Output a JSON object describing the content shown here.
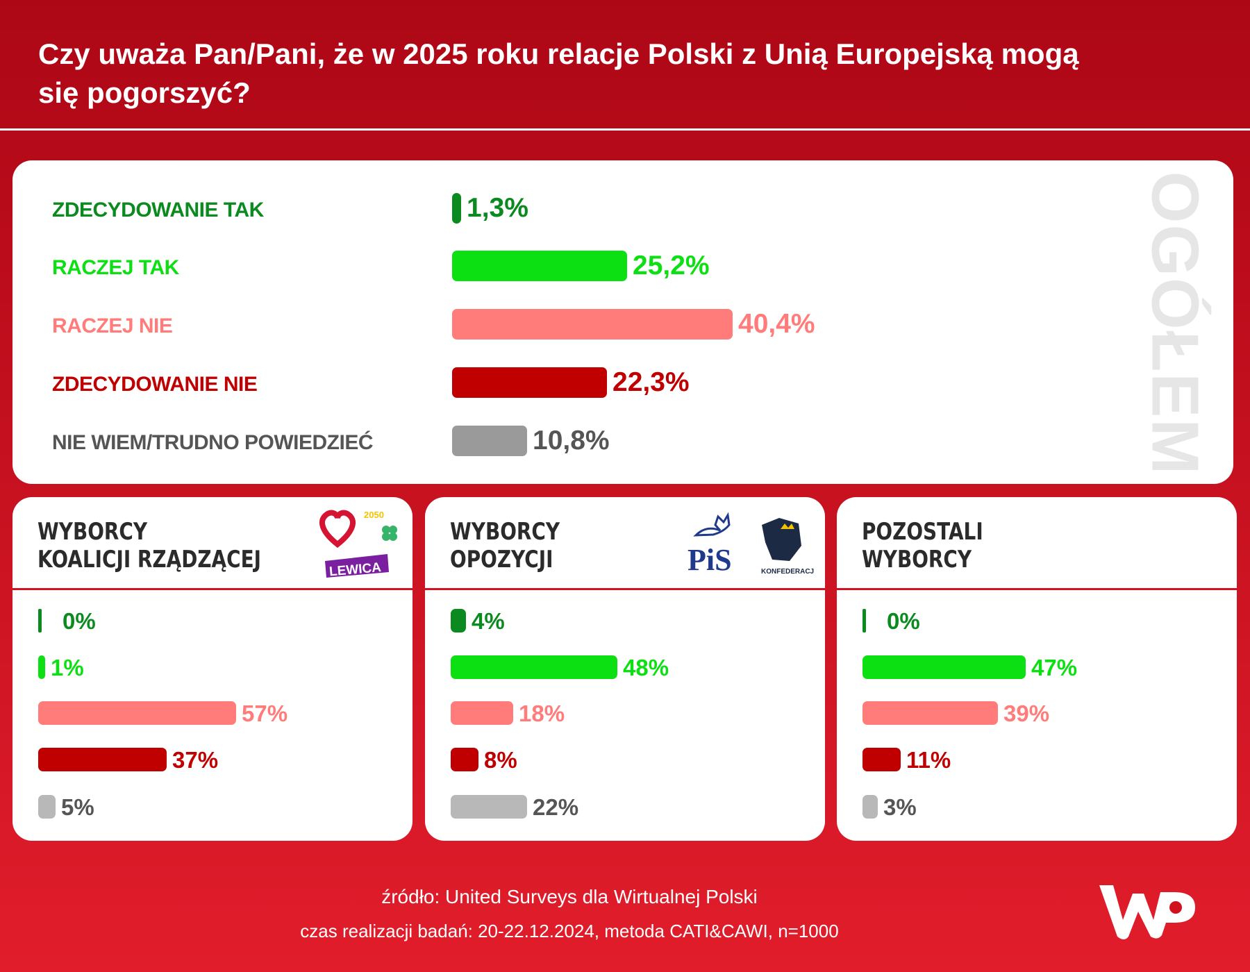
{
  "title": "Czy uważa Pan/Pani, że w 2025 roku relacje Polski z Unią Europejską mogą się pogorszyć?",
  "colors": {
    "zdecydowanie_tak": "#0a8a1f",
    "raczej_tak": "#0ce013",
    "raczej_nie": "#ff7c7a",
    "zdecydowanie_nie": "#c00000",
    "nie_wiem": "#9a9a9a",
    "nie_wiem_light": "#b8b8b8",
    "background": "#c8101f"
  },
  "chart_data": [
    {
      "type": "bar",
      "orientation": "horizontal",
      "title": "OGÓŁEM",
      "categories": [
        "ZDECYDOWANIE TAK",
        "RACZEJ TAK",
        "RACZEJ NIE",
        "ZDECYDOWANIE NIE",
        "NIE WIEM/TRUDNO POWIEDZIEĆ"
      ],
      "values": [
        1.3,
        25.2,
        40.4,
        22.3,
        10.8
      ],
      "labels": [
        "1,3%",
        "25,2%",
        "40,4%",
        "22,3%",
        "10,8%"
      ]
    },
    {
      "type": "bar",
      "orientation": "horizontal",
      "title": "WYBORCY KOALICJI RZĄDZĄCEJ",
      "categories": [
        "ZDECYDOWANIE TAK",
        "RACZEJ TAK",
        "RACZEJ NIE",
        "ZDECYDOWANIE NIE",
        "NIE WIEM/TRUDNO POWIEDZIEĆ"
      ],
      "values": [
        0,
        1,
        57,
        37,
        5
      ],
      "labels": [
        "0%",
        "1%",
        "57%",
        "37%",
        "5%"
      ]
    },
    {
      "type": "bar",
      "orientation": "horizontal",
      "title": "WYBORCY OPOZYCJI",
      "categories": [
        "ZDECYDOWANIE TAK",
        "RACZEJ TAK",
        "RACZEJ NIE",
        "ZDECYDOWANIE NIE",
        "NIE WIEM/TRUDNO POWIEDZIEĆ"
      ],
      "values": [
        4,
        48,
        18,
        8,
        22
      ],
      "labels": [
        "4%",
        "48%",
        "18%",
        "8%",
        "22%"
      ]
    },
    {
      "type": "bar",
      "orientation": "horizontal",
      "title": "POZOSTALI WYBORCY",
      "categories": [
        "ZDECYDOWANIE TAK",
        "RACZEJ TAK",
        "RACZEJ NIE",
        "ZDECYDOWANIE NIE",
        "NIE WIEM/TRUDNO POWIEDZIEĆ"
      ],
      "values": [
        0,
        47,
        39,
        11,
        3
      ],
      "labels": [
        "0%",
        "47%",
        "39%",
        "11%",
        "3%"
      ]
    }
  ],
  "cards": [
    {
      "title_1": "WYBORCY",
      "title_2": "KOALICJI RZĄDZĄCEJ",
      "logos": [
        "KO heart",
        "2050",
        "PSL clover",
        "LEWICA"
      ]
    },
    {
      "title_1": "WYBORCY",
      "title_2": "OPOZYCJI",
      "logos": [
        "PiS",
        "KONFEDERACJA"
      ]
    },
    {
      "title_1": "POZOSTALI",
      "title_2": "WYBORCY",
      "logos": []
    }
  ],
  "logo_text": {
    "lewica": "LEWICA",
    "pis": "PiS",
    "konfederacja": "KONFEDERACJA",
    "wp": "WP",
    "n2050": "2050"
  },
  "footer": {
    "source": "źródło: United Surveys dla Wirtualnej Polski",
    "details": "czas realizacji badań: 20-22.12.2024, metoda CATI&CAWI, n=1000"
  }
}
